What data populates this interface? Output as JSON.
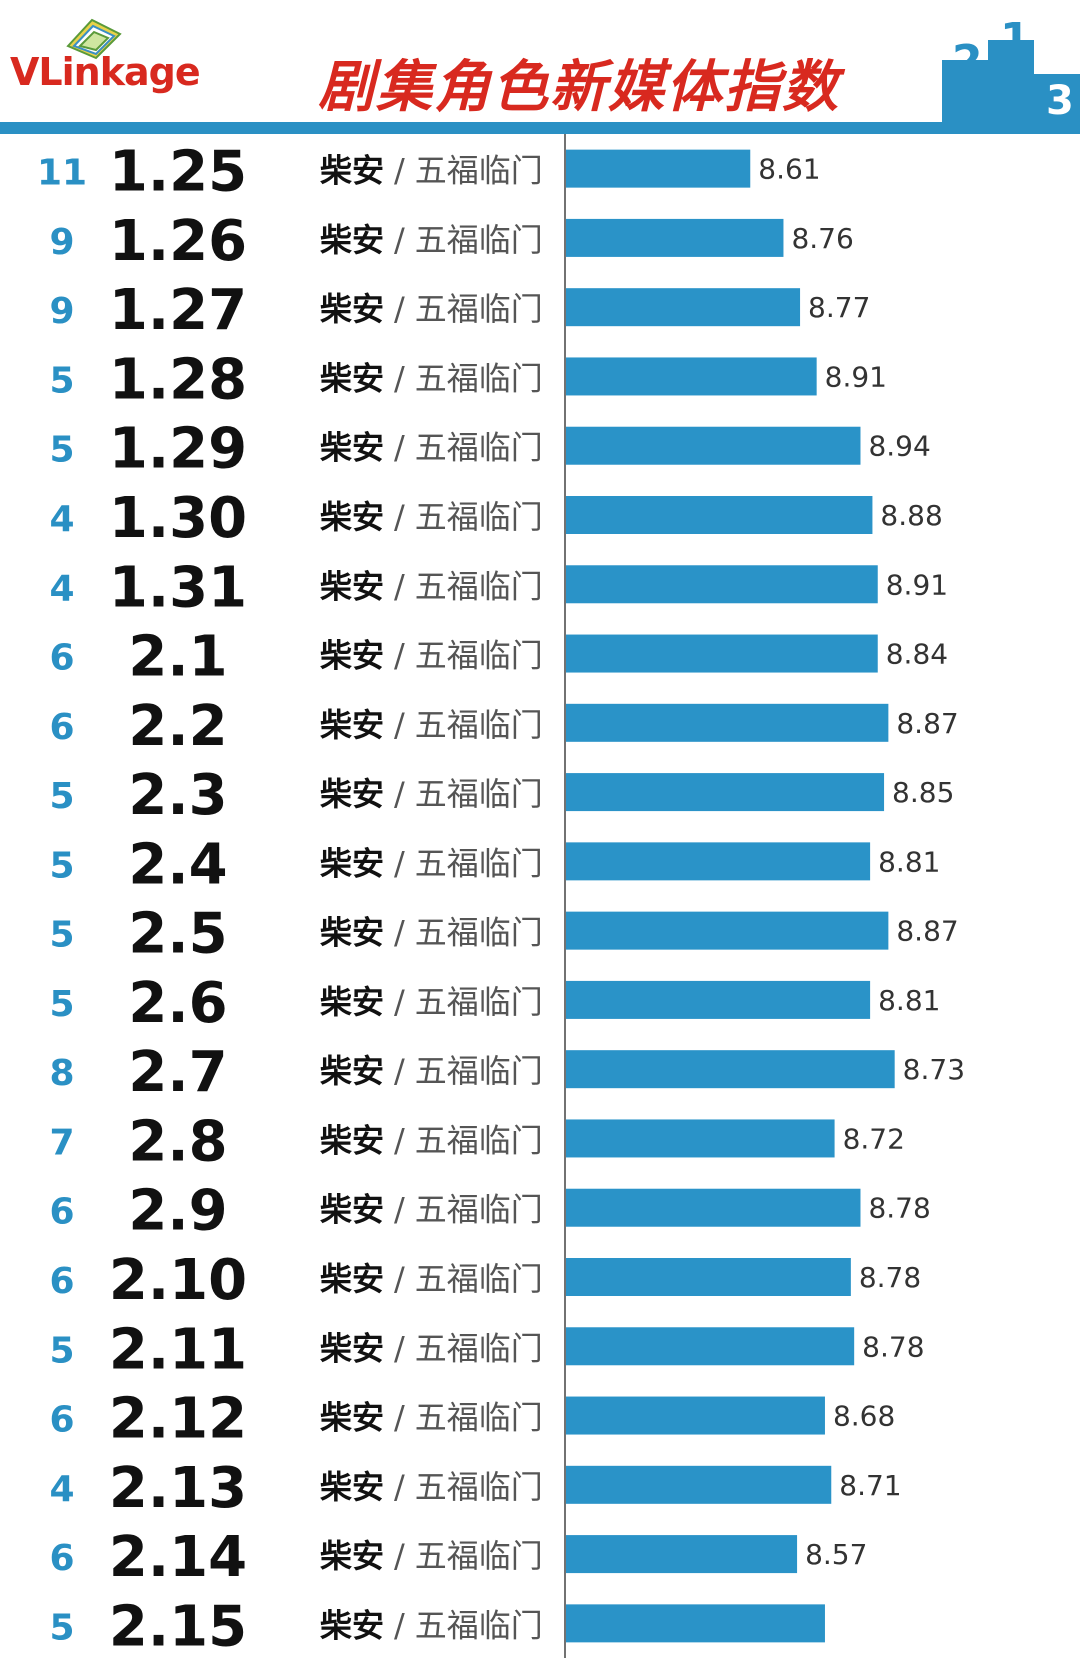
{
  "header": {
    "logo_text": "VLinkage",
    "title": "剧集角色新媒体指数",
    "podium_digits": [
      "2",
      "1",
      "3"
    ]
  },
  "colors": {
    "bar": "#2a93c8",
    "rank": "#2a90c4",
    "accent_red": "#d8291f",
    "date": "#111111",
    "value_label": "#333333"
  },
  "chart_data": {
    "type": "bar",
    "orientation": "horizontal",
    "title": "剧集角色新媒体指数",
    "xlabel": "",
    "ylabel": "",
    "categories": [
      "1.25",
      "1.26",
      "1.27",
      "1.28",
      "1.29",
      "1.30",
      "1.31",
      "2.1",
      "2.2",
      "2.3",
      "2.4",
      "2.5",
      "2.6",
      "2.7",
      "2.8",
      "2.9",
      "2.10",
      "2.11",
      "2.12",
      "2.13",
      "2.14",
      "2.15"
    ],
    "values": [
      8.61,
      8.76,
      8.77,
      8.91,
      8.94,
      8.88,
      8.91,
      8.84,
      8.87,
      8.85,
      8.81,
      8.87,
      8.81,
      8.73,
      8.72,
      8.78,
      8.78,
      8.78,
      8.68,
      8.71,
      8.57,
      null
    ],
    "value_labels": [
      "8.61",
      "8.76",
      "8.77",
      "8.91",
      "8.94",
      "8.88",
      "8.91",
      "8.84",
      "8.87",
      "8.85",
      "8.81",
      "8.87",
      "8.81",
      "8.73",
      "8.72",
      "8.78",
      "8.78",
      "8.78",
      "8.68",
      "8.71",
      "8.57",
      ""
    ],
    "bar_fill_fractions": [
      0.555,
      0.655,
      0.705,
      0.755,
      0.887,
      0.923,
      0.939,
      0.939,
      0.971,
      0.958,
      0.916,
      0.971,
      0.916,
      0.99,
      0.809,
      0.887,
      0.858,
      0.868,
      0.78,
      0.799,
      0.696,
      0.78
    ],
    "ranks": [
      "11",
      "9",
      "9",
      "5",
      "5",
      "4",
      "4",
      "6",
      "6",
      "5",
      "5",
      "5",
      "5",
      "8",
      "7",
      "6",
      "6",
      "5",
      "6",
      "4",
      "6",
      "5"
    ],
    "role": "柴安",
    "separator": "/",
    "drama": "五福临门"
  }
}
